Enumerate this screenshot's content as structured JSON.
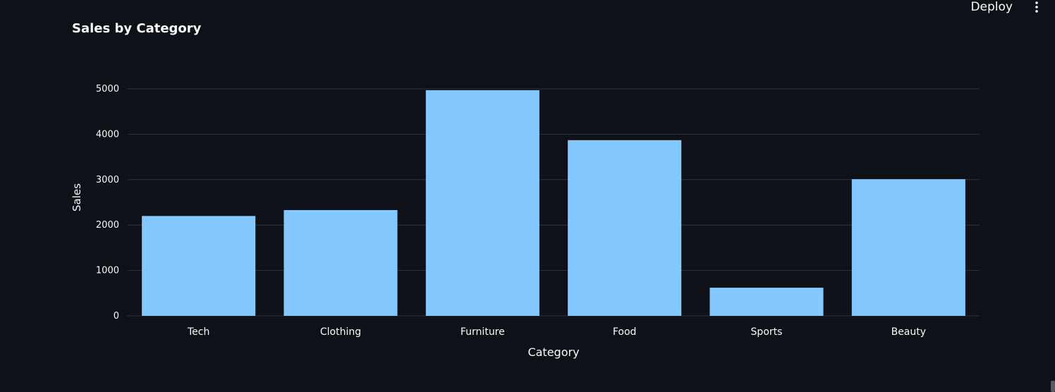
{
  "toolbar": {
    "deploy_label": "Deploy",
    "menu_icon": "kebab-vertical-icon"
  },
  "colors": {
    "background": "#0e1117",
    "bar": "#83c9ff",
    "grid": "#31333f",
    "text": "#fafafa"
  },
  "chart_data": {
    "type": "bar",
    "title": "Sales by Category",
    "xlabel": "Category",
    "ylabel": "Sales",
    "categories": [
      "Tech",
      "Clothing",
      "Furniture",
      "Food",
      "Sports",
      "Beauty"
    ],
    "values": [
      2200,
      2330,
      4970,
      3870,
      620,
      3010
    ],
    "yticks": [
      0,
      1000,
      2000,
      3000,
      4000,
      5000
    ],
    "ylim": [
      0,
      5000
    ],
    "grid": true,
    "legend": "none"
  }
}
